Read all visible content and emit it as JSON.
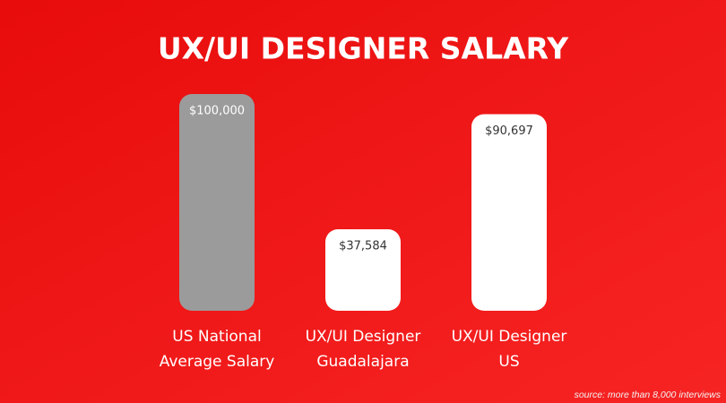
{
  "chart_data": {
    "type": "bar",
    "title": "UX/UI DESIGNER SALARY",
    "categories": [
      [
        "US National",
        "Average Salary"
      ],
      [
        "UX/UI Designer",
        "Guadalajara"
      ],
      [
        "UX/UI Designer",
        "US"
      ]
    ],
    "values": [
      100000,
      37584,
      90697
    ],
    "value_labels": [
      "$100,000",
      "$37,584",
      "$90,697"
    ],
    "colors": [
      "#9b9b9b",
      "#ffffff",
      "#ffffff"
    ],
    "value_label_colors": [
      "#ffffff",
      "#333333",
      "#333333"
    ],
    "source": "source: more than 8,000 interviews"
  }
}
